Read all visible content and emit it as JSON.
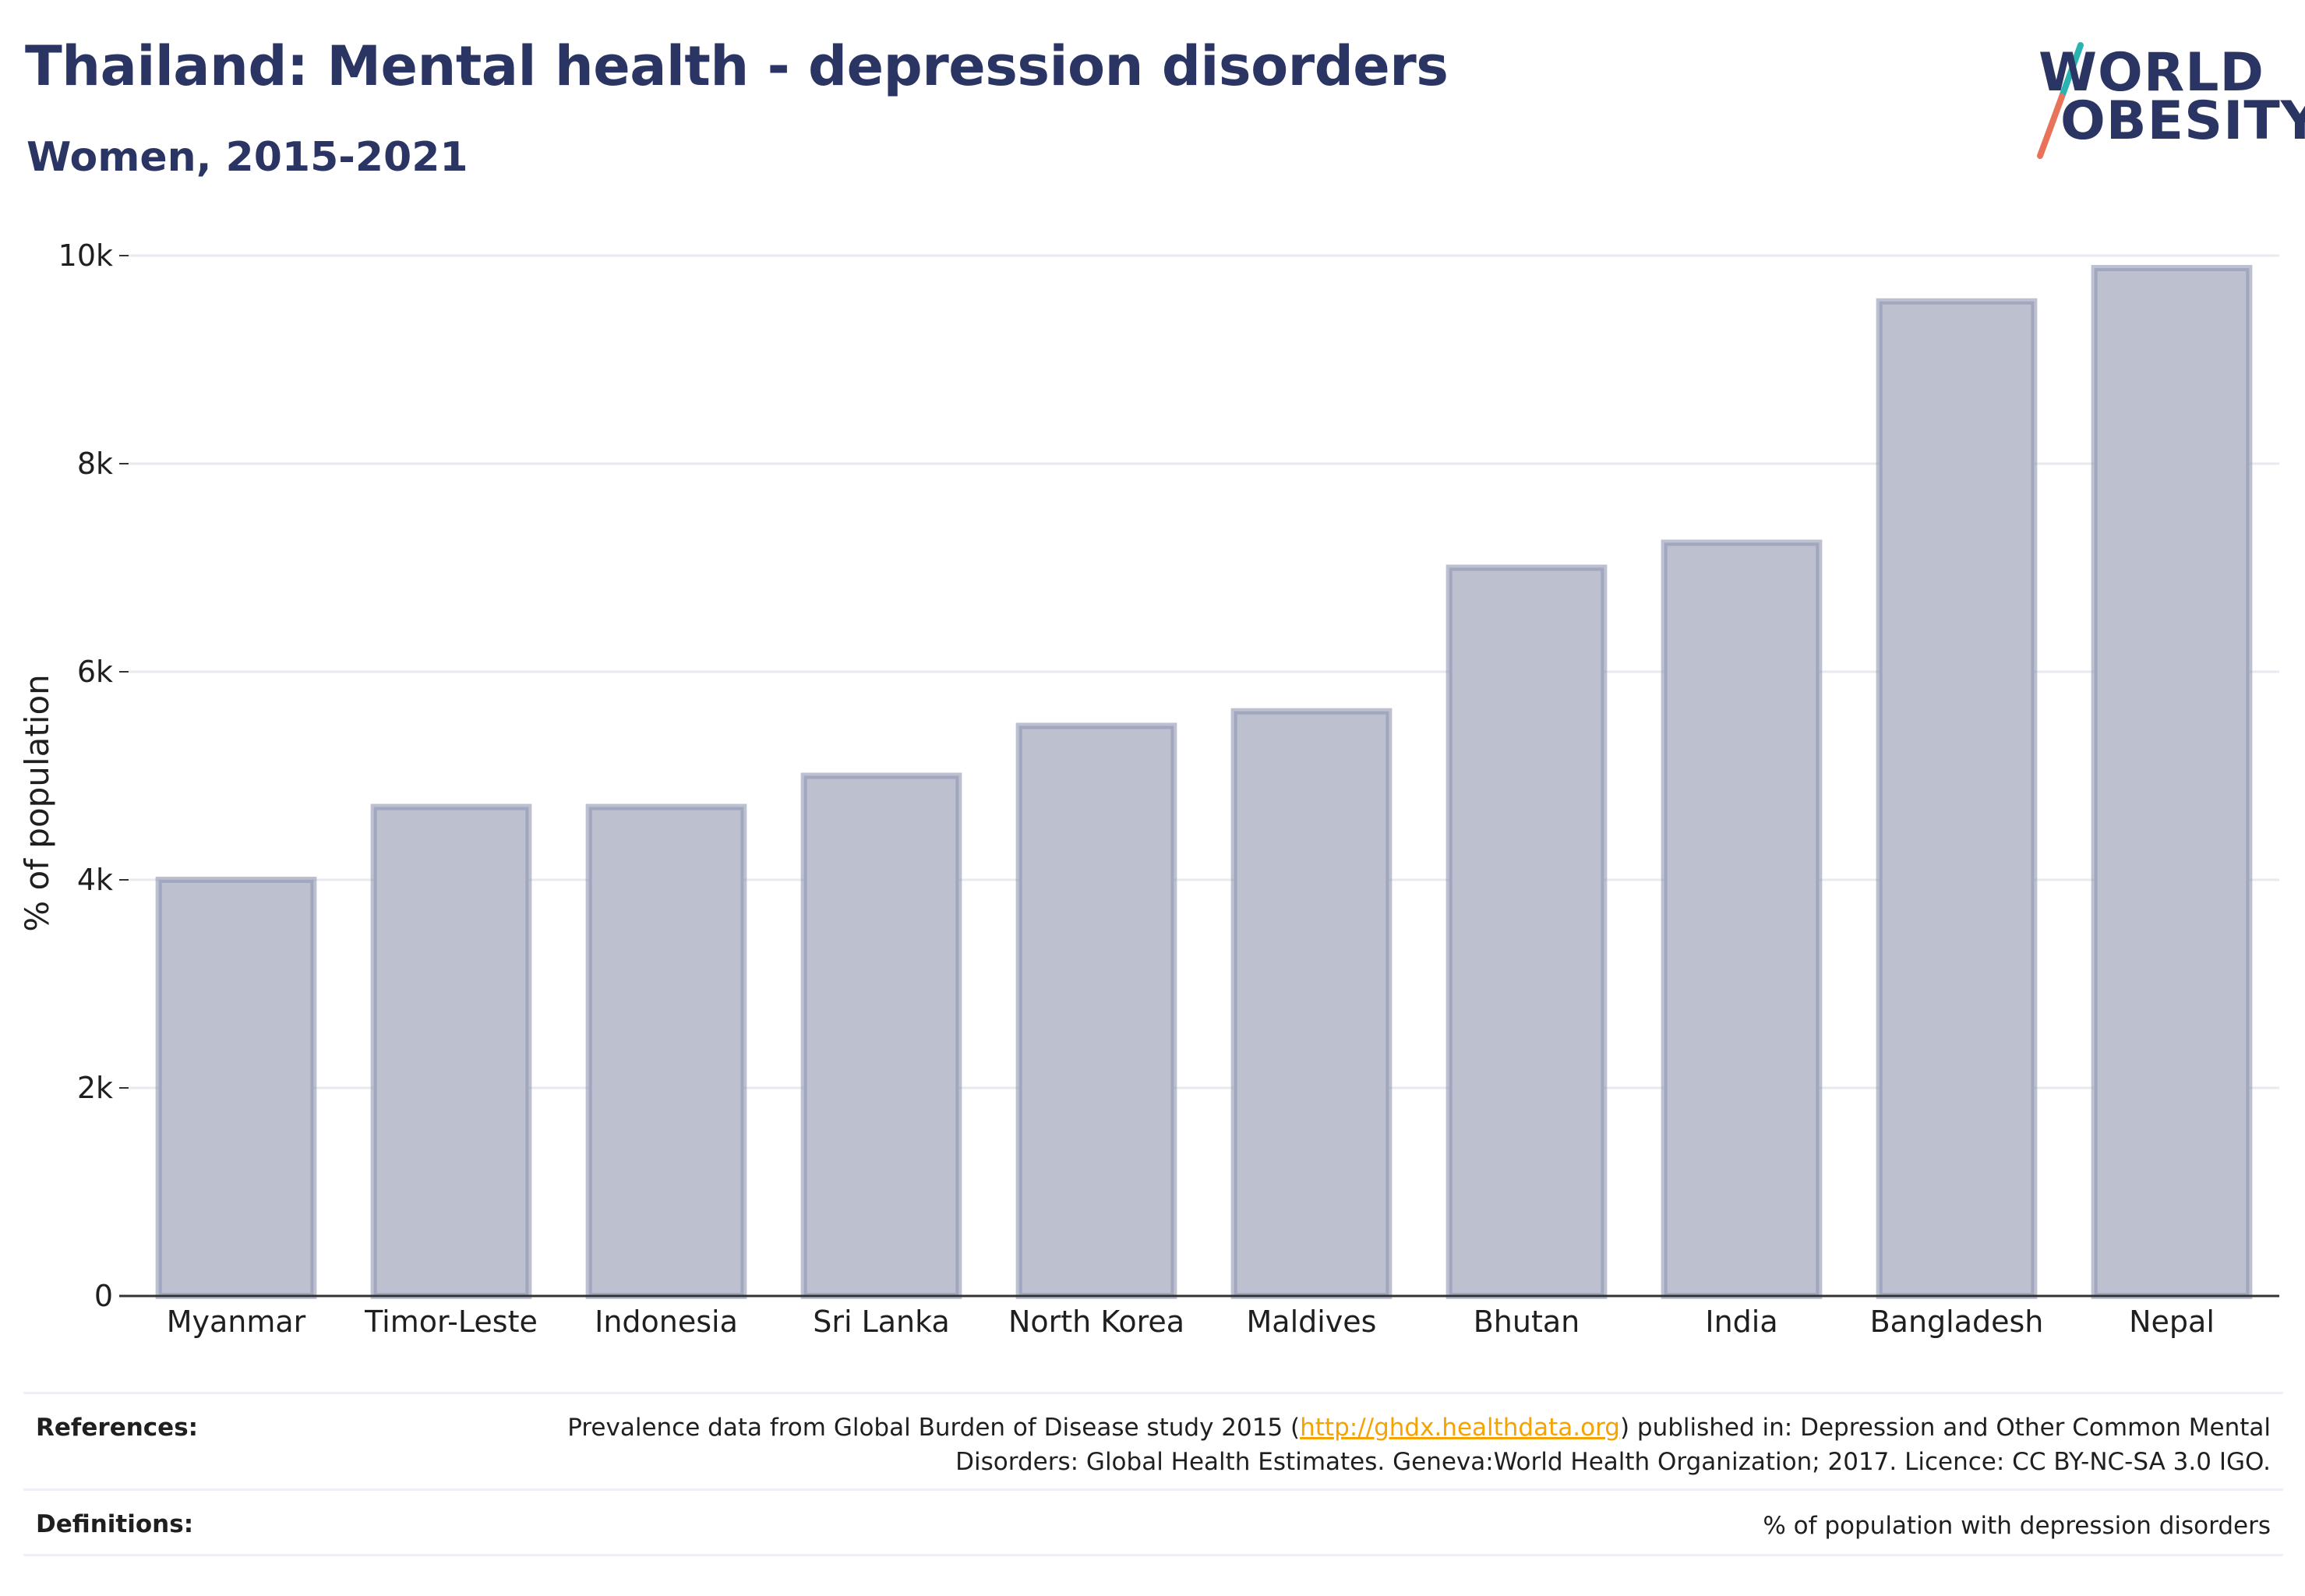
{
  "header": {
    "title": "Thailand: Mental health - depression disorders",
    "subtitle": "Women, 2015-2021"
  },
  "logo": {
    "line1": "WORLD",
    "line2": "OBESITY",
    "colors": {
      "text": "#2b3563",
      "accent_teal": "#2ab3b1",
      "accent_coral": "#e8735a"
    }
  },
  "chart_data": {
    "type": "bar",
    "title": "",
    "xlabel": "",
    "ylabel": "% of population",
    "categories": [
      "Myanmar",
      "Timor-Leste",
      "Indonesia",
      "Sri Lanka",
      "North Korea",
      "Maldives",
      "Bhutan",
      "India",
      "Bangladesh",
      "Nepal"
    ],
    "values": [
      4000,
      4700,
      4700,
      5000,
      5480,
      5620,
      7000,
      7240,
      9560,
      9880
    ],
    "ylim": [
      0,
      10000
    ],
    "yticks": [
      0,
      2000,
      4000,
      6000,
      8000,
      10000
    ],
    "ytick_labels": [
      "0",
      "2k",
      "4k",
      "6k",
      "8k",
      "10k"
    ],
    "grid": true,
    "legend": "none",
    "colors": {
      "bar_fill": "#bcc0cf",
      "bar_stroke": "#8f96b2",
      "grid": "#e8eaf0",
      "axis": "#333333"
    }
  },
  "footer": {
    "references_label": "References:",
    "references_text_before": "Prevalence data from Global Burden of Disease study 2015 (",
    "references_link": "http://ghdx.healthdata.org",
    "references_text_after": ") published in: Depression and Other Common Mental Disorders: Global Health Estimates. Geneva:World Health Organization; 2017. Licence: CC BY-NC-SA 3.0 IGO.",
    "definitions_label": "Definitions:",
    "definitions_text": "% of population with depression disorders"
  }
}
